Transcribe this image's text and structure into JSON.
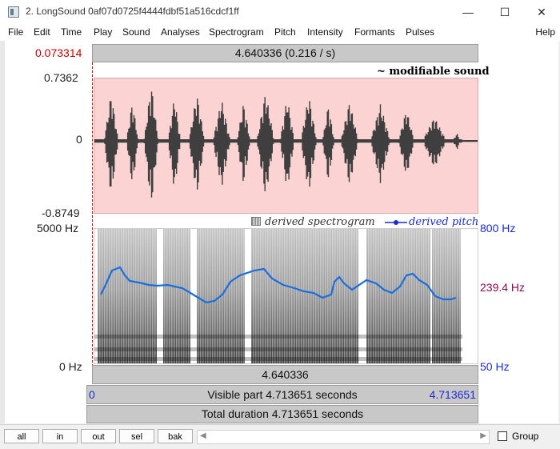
{
  "window": {
    "title": "2. LongSound 0af07d0725f4444fdbf51a516cdcf1ff",
    "controls": {
      "minimize": "—",
      "maximize": "☐",
      "close": "✕"
    }
  },
  "menu": [
    "File",
    "Edit",
    "Time",
    "Play",
    "Sound",
    "Analyses",
    "Spectrogram",
    "Pitch",
    "Intensity",
    "Formants",
    "Pulses"
  ],
  "menu_help": "Help",
  "editor": {
    "cursor_time": "0.073314",
    "top_bar": "4.640336 (0.216 / s)",
    "wave": {
      "max": "0.7362",
      "zero": "0",
      "min": "-0.8749",
      "label": "~ modifiable sound"
    },
    "spectrogram": {
      "max_hz": "5000 Hz",
      "min_hz": "0 Hz",
      "label": "derived spectrogram",
      "pitch_label": "derived pitch",
      "pitch_top": "800 Hz",
      "pitch_current": "239.4 Hz",
      "pitch_bottom": "50 Hz"
    },
    "bar_duration": "4.640336",
    "visible": {
      "start": "0",
      "text": "Visible part 4.713651 seconds",
      "end": "4.713651"
    },
    "total": "Total duration 4.713651 seconds"
  },
  "bottom": {
    "buttons": [
      "all",
      "in",
      "out",
      "sel",
      "bak"
    ],
    "scroll_left": "◀",
    "scroll_right": "▶",
    "group_label": "Group"
  },
  "colors": {
    "wave_bg": "#fcd3d3",
    "pitch": "#1a6fe0",
    "cursor": "#c00000"
  }
}
